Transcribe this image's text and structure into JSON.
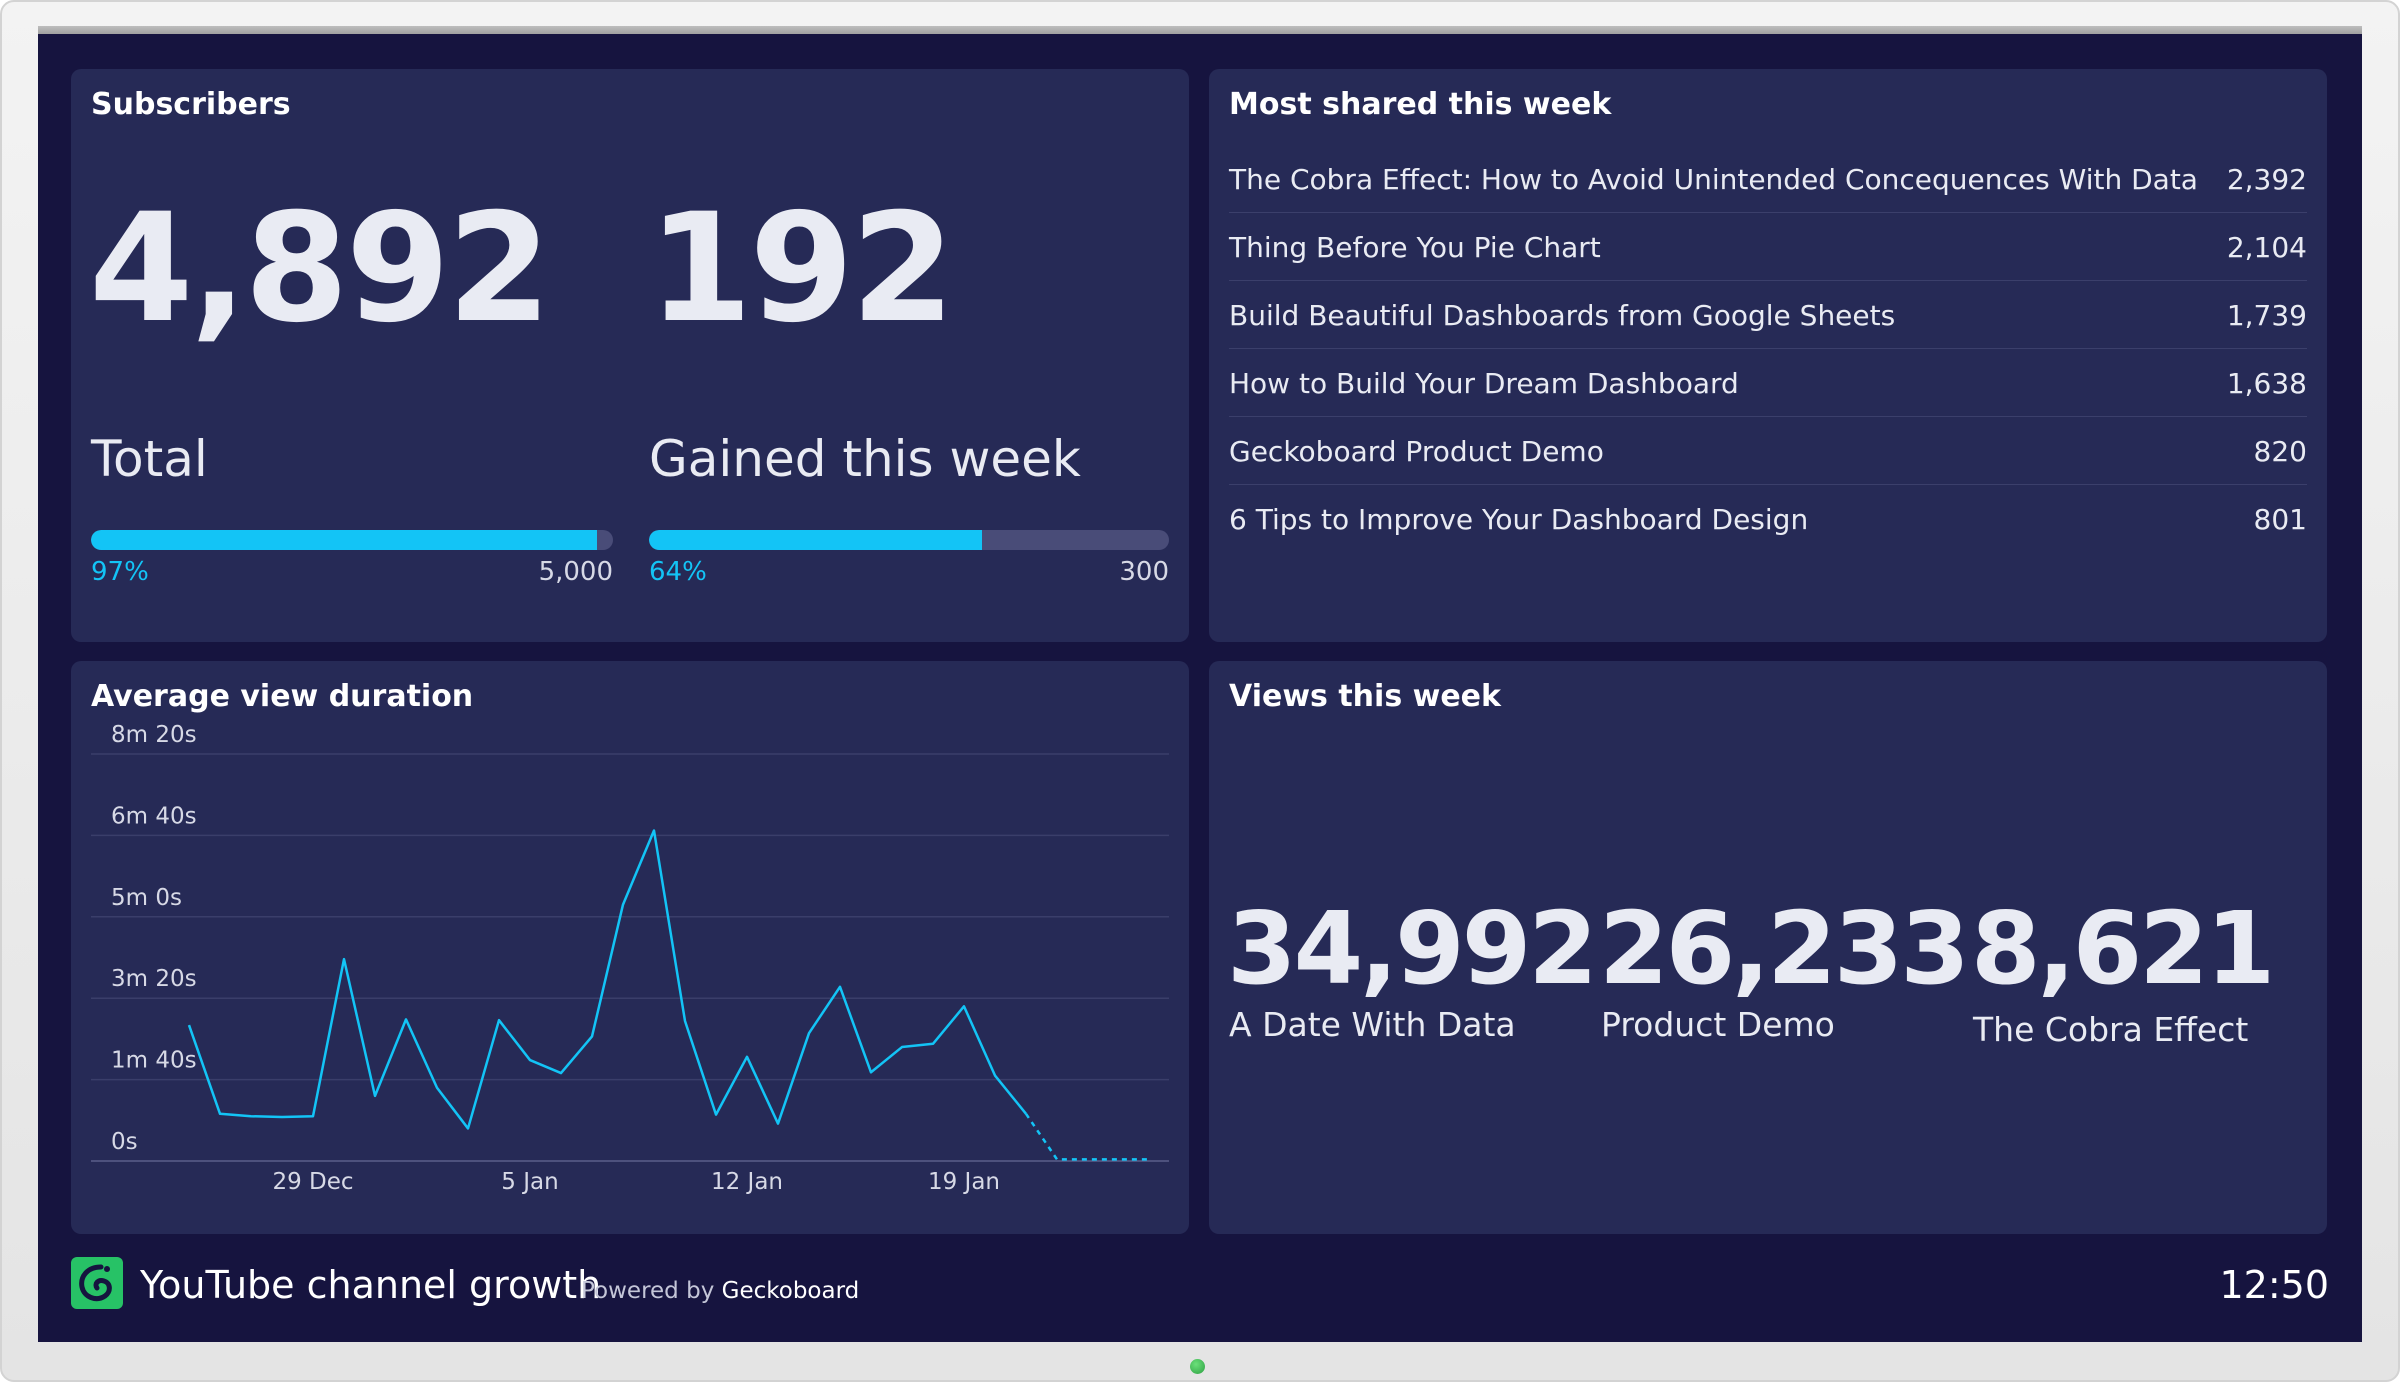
{
  "dashboard": {
    "title": "YouTube channel growth",
    "powered_prefix": "Powered by",
    "powered_brand": "Geckoboard",
    "time": "12:50",
    "logo_icon": "geckoboard-logo-icon"
  },
  "colors": {
    "screen_bg": "#16143f",
    "widget_bg": "#262a56",
    "accent": "#13c4f6",
    "bar_track": "#494c78",
    "logo_green": "#27c266"
  },
  "subscribers": {
    "title": "Subscribers",
    "total": {
      "value": "4,892",
      "label": "Total",
      "percent_label": "97%",
      "goal": "5,000",
      "progress": 0.97
    },
    "gained": {
      "value": "192",
      "label": "Gained this week",
      "percent_label": "64%",
      "goal": "300",
      "progress": 0.64
    }
  },
  "most_shared": {
    "title": "Most shared this week",
    "items": [
      {
        "title": "The Cobra Effect: How to Avoid Unintended Concequences With Data",
        "count": "2,392"
      },
      {
        "title": "Thing Before You Pie Chart",
        "count": "2,104"
      },
      {
        "title": "Build Beautiful Dashboards from Google Sheets",
        "count": "1,739"
      },
      {
        "title": "How to Build Your Dream Dashboard",
        "count": "1,638"
      },
      {
        "title": "Geckoboard Product Demo",
        "count": "820"
      },
      {
        "title": "6 Tips to Improve Your Dashboard Design",
        "count": "801"
      }
    ]
  },
  "avg_view": {
    "title": "Average view duration"
  },
  "views": {
    "title": "Views this week",
    "items": [
      {
        "value": "34,992",
        "label": "A Date With Data"
      },
      {
        "value": "26,233",
        "label": "Product Demo"
      },
      {
        "value": "8,621",
        "label": "The Cobra Effect"
      }
    ]
  },
  "chart_data": {
    "type": "line",
    "title": "Average view duration",
    "xlabel": "",
    "ylabel": "",
    "y_unit": "seconds",
    "ylim": [
      0,
      500
    ],
    "y_ticks": [
      0,
      100,
      200,
      300,
      400,
      500
    ],
    "y_tick_labels": [
      "0s",
      "1m 40s",
      "3m 20s",
      "5m 0s",
      "6m 40s",
      "8m 20s"
    ],
    "x_ticks": [
      "2023-12-29",
      "2024-01-05",
      "2024-01-12",
      "2024-01-19"
    ],
    "x_tick_labels": [
      "29 Dec",
      "5 Jan",
      "12 Jan",
      "19 Jan"
    ],
    "grid": true,
    "series": [
      {
        "x": [
          "2023-12-25",
          "2023-12-26",
          "2023-12-27",
          "2023-12-28",
          "2023-12-29",
          "2023-12-30",
          "2023-12-31",
          "2024-01-01",
          "2024-01-02",
          "2024-01-03",
          "2024-01-04",
          "2024-01-05",
          "2024-01-06",
          "2024-01-07",
          "2024-01-08",
          "2024-01-09",
          "2024-01-10",
          "2024-01-11",
          "2024-01-12",
          "2024-01-13",
          "2024-01-14",
          "2024-01-15",
          "2024-01-16",
          "2024-01-17",
          "2024-01-18",
          "2024-01-19",
          "2024-01-20",
          "2024-01-21",
          "2024-01-22",
          "2024-01-23",
          "2024-01-24",
          "2024-01-25"
        ],
        "y": [
          167,
          58,
          55,
          54,
          55,
          248,
          80,
          174,
          90,
          40,
          173,
          124,
          108,
          153,
          315,
          406,
          172,
          57,
          128,
          46,
          157,
          214,
          109,
          140,
          144,
          190,
          105,
          58,
          2,
          2,
          2,
          2
        ],
        "dashed_from": "2024-01-21",
        "color": "#13c4f6"
      }
    ]
  }
}
